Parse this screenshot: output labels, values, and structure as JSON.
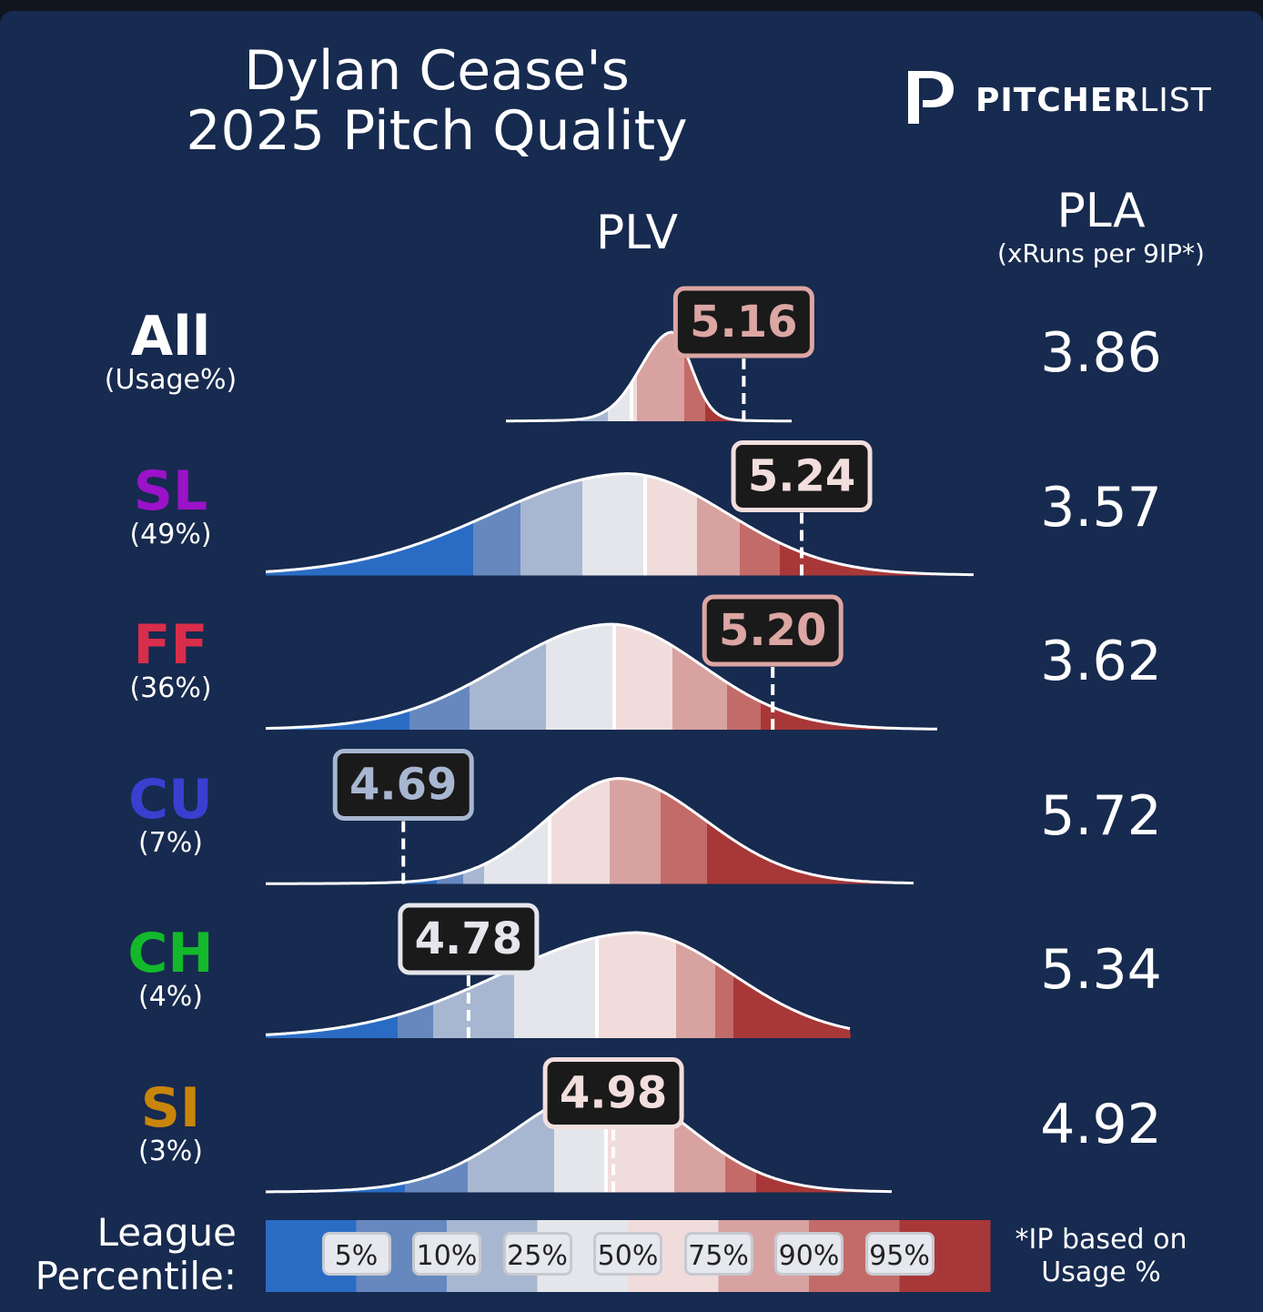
{
  "title": {
    "line1": "Dylan Cease's",
    "line2": "2025 Pitch Quality"
  },
  "logo": {
    "bold": "PITCHER",
    "light": "LIST"
  },
  "headers": {
    "plv": "PLV",
    "pla": "PLA",
    "pla_sub": "(xRuns per 9IP*)"
  },
  "legend": {
    "title_line1": "League",
    "title_line2": "Percentile:",
    "labels": [
      "5%",
      "10%",
      "25%",
      "50%",
      "75%",
      "90%",
      "95%"
    ],
    "colors": [
      "#2a6cc4",
      "#6688bf",
      "#a8b7d1",
      "#e5e6ec",
      "#f1dcdc",
      "#d8a2a0",
      "#c36b69",
      "#a83838"
    ]
  },
  "note": {
    "line1": "*IP based on",
    "line2": "Usage %"
  },
  "chart_data": {
    "type": "ridgeline",
    "x_axis": "PLV",
    "rows": [
      {
        "pitch": "All",
        "usage": "(Usage%)",
        "plv": 5.16,
        "plv_label": "5.16",
        "pla": "3.86",
        "pitch_color": "#ffffff",
        "value_color": "#dca6a3"
      },
      {
        "pitch": "SL",
        "usage": "(49%)",
        "plv": 5.24,
        "plv_label": "5.24",
        "pla": "3.57",
        "pitch_color": "#9b12c9",
        "value_color": "#f2dedd"
      },
      {
        "pitch": "FF",
        "usage": "(36%)",
        "plv": 5.2,
        "plv_label": "5.20",
        "pla": "3.62",
        "pitch_color": "#d92e4b",
        "value_color": "#dca6a3"
      },
      {
        "pitch": "CU",
        "usage": "(7%)",
        "plv": 4.69,
        "plv_label": "4.69",
        "pla": "5.72",
        "pitch_color": "#3a3fd0",
        "value_color": "#a8b7d1"
      },
      {
        "pitch": "CH",
        "usage": "(4%)",
        "plv": 4.78,
        "plv_label": "4.78",
        "pla": "5.34",
        "pitch_color": "#13b82b",
        "value_color": "#e5e6ec"
      },
      {
        "pitch": "SI",
        "usage": "(3%)",
        "plv": 4.98,
        "plv_label": "4.98",
        "pla": "4.92",
        "pitch_color": "#c98509",
        "value_color": "#f2dedd"
      }
    ]
  }
}
